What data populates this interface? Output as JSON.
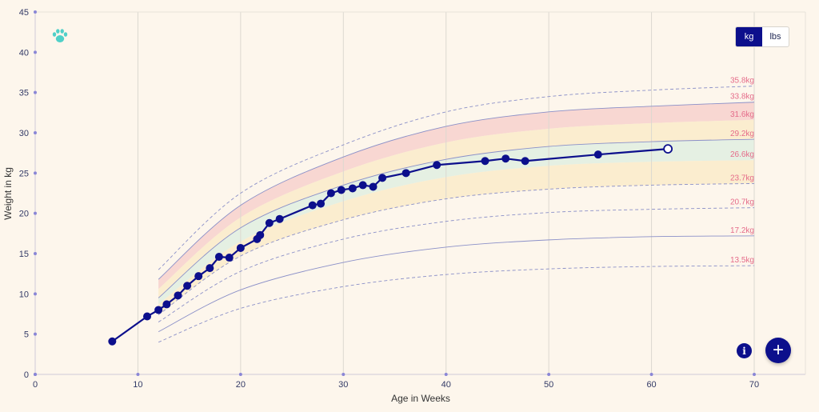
{
  "units": {
    "kg": "kg",
    "lbs": "lbs",
    "selected": "kg"
  },
  "icons": {
    "brand": "paw-print-icon",
    "info": "info-icon",
    "add": "plus-icon"
  },
  "info_glyph": "i",
  "add_glyph": "+",
  "colors": {
    "line": "#0c0f8c",
    "band_red": "#f7d4cf",
    "band_yellow": "#fbeccc",
    "band_green": "#e2f0e2",
    "percentile_label": "#e56c8a",
    "background": "#fdf6ec"
  },
  "chart_data": {
    "type": "line",
    "xlabel": "Age in Weeks",
    "ylabel": "Weight in kg",
    "xlim": [
      0,
      75
    ],
    "ylim": [
      0,
      45
    ],
    "x_ticks": [
      0,
      10,
      20,
      30,
      40,
      50,
      60,
      70
    ],
    "y_ticks": [
      0,
      5,
      10,
      15,
      20,
      25,
      30,
      35,
      40,
      45
    ],
    "grid": "vertical",
    "series": [
      {
        "x": [
          7.5,
          10.9,
          12.0,
          12.8,
          13.9,
          14.8,
          15.9,
          17.0,
          17.9,
          18.9,
          20.0,
          21.6,
          21.9,
          22.8,
          23.8,
          27.0,
          27.8,
          28.8,
          29.8,
          30.9,
          31.9,
          32.9,
          33.8,
          36.1,
          39.1,
          43.8,
          45.8,
          47.7,
          54.8,
          61.6
        ],
        "values": [
          4.1,
          7.2,
          8.0,
          8.7,
          9.8,
          11.0,
          12.2,
          13.2,
          14.6,
          14.5,
          15.7,
          16.8,
          17.3,
          18.8,
          19.3,
          21.0,
          21.2,
          22.5,
          22.9,
          23.1,
          23.5,
          23.3,
          24.4,
          25.0,
          26.0,
          26.5,
          26.8,
          26.5,
          27.3,
          28.0
        ]
      }
    ],
    "reference_curves": {
      "x": [
        12,
        20,
        30,
        40,
        50,
        60,
        70
      ],
      "curves": [
        {
          "label": "35.8kg",
          "style": "dashed",
          "values": [
            13.0,
            22.5,
            28.5,
            32.6,
            34.5,
            35.3,
            35.8
          ]
        },
        {
          "label": "33.8kg",
          "style": "solid",
          "values": [
            11.8,
            21.0,
            27.0,
            30.8,
            32.6,
            33.3,
            33.8
          ]
        },
        {
          "label": "31.6kg",
          "style": "none",
          "values": [
            10.6,
            19.5,
            25.2,
            28.8,
            30.5,
            31.2,
            31.6
          ]
        },
        {
          "label": "29.2kg",
          "style": "solid",
          "values": [
            9.5,
            18.2,
            23.5,
            26.7,
            28.3,
            28.9,
            29.2
          ]
        },
        {
          "label": "26.6kg",
          "style": "none",
          "values": [
            8.7,
            16.5,
            21.5,
            24.5,
            25.9,
            26.4,
            26.6
          ]
        },
        {
          "label": "23.7kg",
          "style": "dashed",
          "values": [
            7.4,
            14.7,
            19.2,
            21.8,
            23.0,
            23.5,
            23.7
          ]
        },
        {
          "label": "20.7kg",
          "style": "dashed",
          "values": [
            6.5,
            12.8,
            16.8,
            19.0,
            20.1,
            20.5,
            20.7
          ]
        },
        {
          "label": "17.2kg",
          "style": "solid",
          "values": [
            5.3,
            10.5,
            13.9,
            15.8,
            16.7,
            17.1,
            17.2
          ]
        },
        {
          "label": "13.5kg",
          "style": "dashed",
          "values": [
            4.0,
            8.2,
            10.9,
            12.4,
            13.1,
            13.4,
            13.5
          ]
        }
      ],
      "bands": [
        {
          "from": "33.8kg",
          "to": "31.6kg",
          "color": "red"
        },
        {
          "from": "31.6kg",
          "to": "29.2kg",
          "color": "yellow"
        },
        {
          "from": "29.2kg",
          "to": "26.6kg",
          "color": "green"
        },
        {
          "from": "26.6kg",
          "to": "23.7kg",
          "color": "yellow"
        }
      ]
    }
  }
}
